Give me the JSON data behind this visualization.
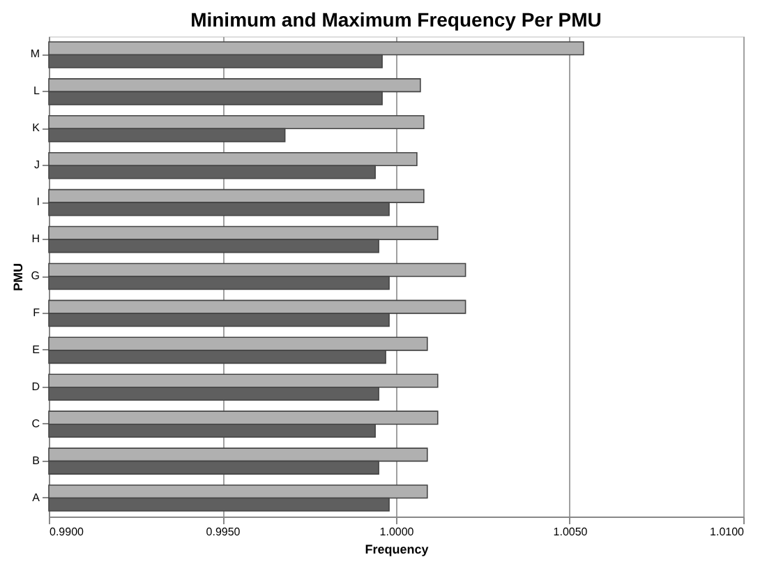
{
  "chart_data": {
    "type": "bar",
    "orientation": "horizontal",
    "title": "Minimum and Maximum Frequency  Per PMU",
    "xlabel": "Frequency",
    "ylabel": "PMU",
    "categories": [
      "M",
      "L",
      "K",
      "J",
      "I",
      "H",
      "G",
      "F",
      "E",
      "D",
      "C",
      "B",
      "A"
    ],
    "series": [
      {
        "color": "#b0b0b0",
        "values": [
          1.0054,
          1.0007,
          1.0008,
          1.0006,
          1.0008,
          1.0012,
          1.002,
          1.002,
          1.0009,
          1.0012,
          1.0012,
          1.0009,
          1.0009
        ]
      },
      {
        "color": "#5f5f5f",
        "values": [
          0.9996,
          0.9996,
          0.9968,
          0.9994,
          0.9998,
          0.9995,
          0.9998,
          0.9998,
          0.9997,
          0.9995,
          0.9994,
          0.9995,
          0.9998
        ]
      }
    ],
    "xlim": [
      0.99,
      1.01
    ],
    "xticks": [
      {
        "value": 0.99,
        "label": "0.9900"
      },
      {
        "value": 0.995,
        "label": "0.9950"
      },
      {
        "value": 1.0,
        "label": "1.0000"
      },
      {
        "value": 1.005,
        "label": "1.0050"
      },
      {
        "value": 1.01,
        "label": "1.0100"
      }
    ],
    "grid": "x",
    "legend": false
  }
}
